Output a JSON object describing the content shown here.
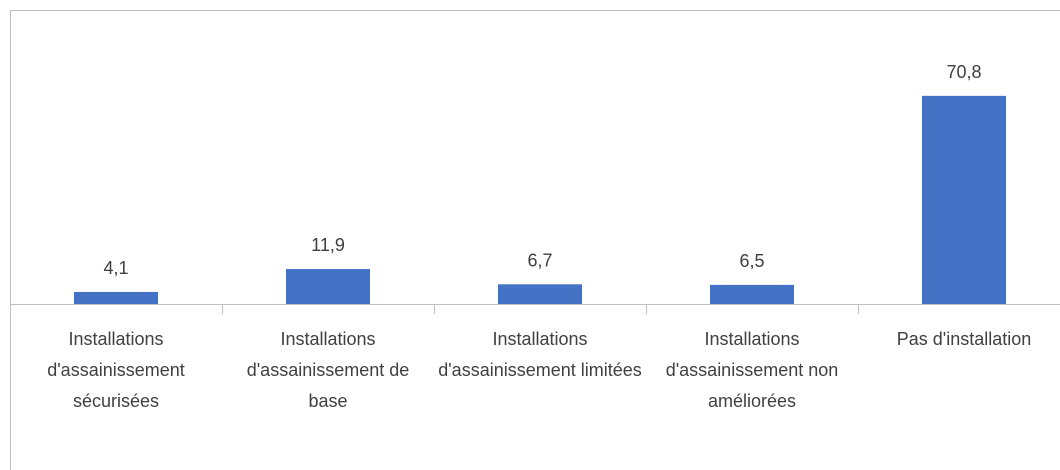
{
  "chart_data": {
    "type": "bar",
    "categories": [
      "Installations d'assainissement sécurisées",
      "Installations d'assainissement de base",
      "Installations d'assainissement limitées",
      "Installations d'assainissement non améliorées",
      "Pas d'installation"
    ],
    "values": [
      4.1,
      11.9,
      6.7,
      6.5,
      70.8
    ],
    "value_labels": [
      "4,1",
      "11,9",
      "6,7",
      "6,5",
      "70,8"
    ],
    "color": "#4472c4",
    "ylim": [
      0,
      100
    ]
  }
}
